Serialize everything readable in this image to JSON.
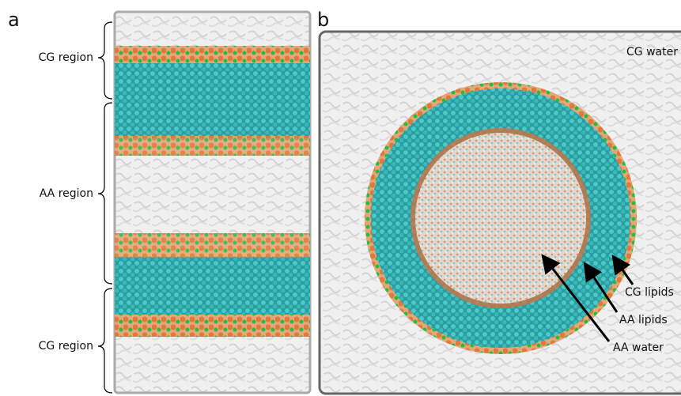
{
  "panels": [
    {
      "label": "a",
      "annotations": [
        "CG region",
        "AA region",
        "CG region"
      ]
    },
    {
      "label": "b",
      "annotations": [
        "CG water",
        "CG lipids",
        "AA lipids",
        "AA water"
      ]
    }
  ]
}
